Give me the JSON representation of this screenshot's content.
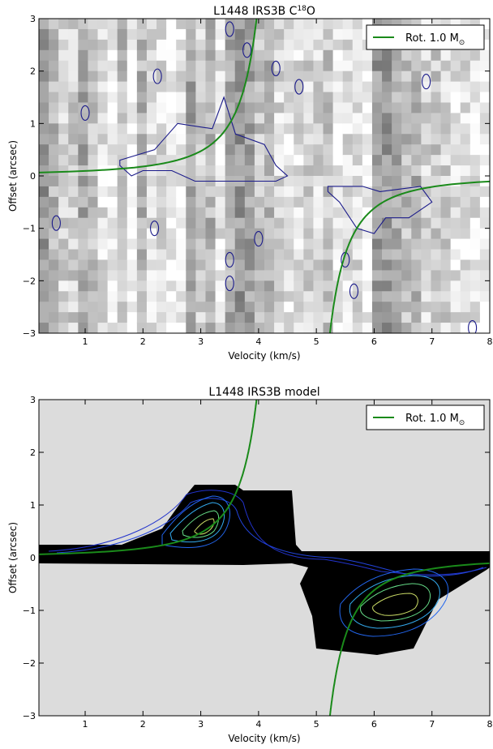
{
  "chart_data": [
    {
      "type": "heatmap",
      "title_main": "L1448 IRS3B C",
      "title_sup": "18",
      "title_tail": "O",
      "xlabel": "Velocity (km/s)",
      "ylabel": "Offset (arcsec)",
      "xlim": [
        0.2,
        8.0
      ],
      "ylim": [
        -3,
        3
      ],
      "xticks": [
        "1",
        "2",
        "3",
        "4",
        "5",
        "6",
        "7",
        "8"
      ],
      "yticks": [
        "3",
        "2",
        "1",
        "0",
        "−1",
        "−2",
        "−3"
      ],
      "legend": {
        "label": "Rot. 1.0 M",
        "sub": "⊙",
        "position": "top-right"
      },
      "colors": {
        "curve": "#1a8a1a",
        "contour": "#1a1a8a"
      },
      "series": [
        {
          "kind": "keplerian-curve",
          "mass": 1.0,
          "v_sys": 4.6
        },
        {
          "kind": "contour-main",
          "points": [
            [
              1.6,
              0.3
            ],
            [
              2.2,
              0.5
            ],
            [
              2.6,
              1.0
            ],
            [
              3.2,
              0.9
            ],
            [
              3.4,
              1.5
            ],
            [
              3.6,
              0.8
            ],
            [
              4.1,
              0.6
            ],
            [
              4.3,
              0.2
            ],
            [
              4.5,
              0.0
            ],
            [
              4.3,
              -0.1
            ],
            [
              3.6,
              -0.1
            ],
            [
              3.2,
              -0.1
            ],
            [
              2.9,
              -0.1
            ],
            [
              2.5,
              0.1
            ],
            [
              2.0,
              0.1
            ],
            [
              1.8,
              0.0
            ],
            [
              1.6,
              0.2
            ]
          ]
        },
        {
          "kind": "contour-main",
          "points": [
            [
              5.2,
              -0.2
            ],
            [
              5.8,
              -0.2
            ],
            [
              6.1,
              -0.3
            ],
            [
              6.8,
              -0.2
            ],
            [
              7.0,
              -0.5
            ],
            [
              6.6,
              -0.8
            ],
            [
              6.2,
              -0.8
            ],
            [
              6.0,
              -1.1
            ],
            [
              5.7,
              -1.0
            ],
            [
              5.4,
              -0.5
            ],
            [
              5.2,
              -0.3
            ]
          ]
        }
      ]
    },
    {
      "type": "heatmap",
      "title_main": "L1448 IRS3B model",
      "xlabel": "Velocity (km/s)",
      "ylabel": "Offset (arcsec)",
      "xlim": [
        0.2,
        8.0
      ],
      "ylim": [
        -3,
        3
      ],
      "xticks": [
        "1",
        "2",
        "3",
        "4",
        "5",
        "6",
        "7",
        "8"
      ],
      "yticks": [
        "3",
        "2",
        "1",
        "0",
        "−1",
        "−2",
        "−3"
      ],
      "legend": {
        "label": "Rot. 1.0 M",
        "sub": "⊙",
        "position": "top-right"
      },
      "colors": {
        "curve": "#1a8a1a",
        "bg": "#dcdcdc",
        "emission": "#000000"
      }
    }
  ]
}
